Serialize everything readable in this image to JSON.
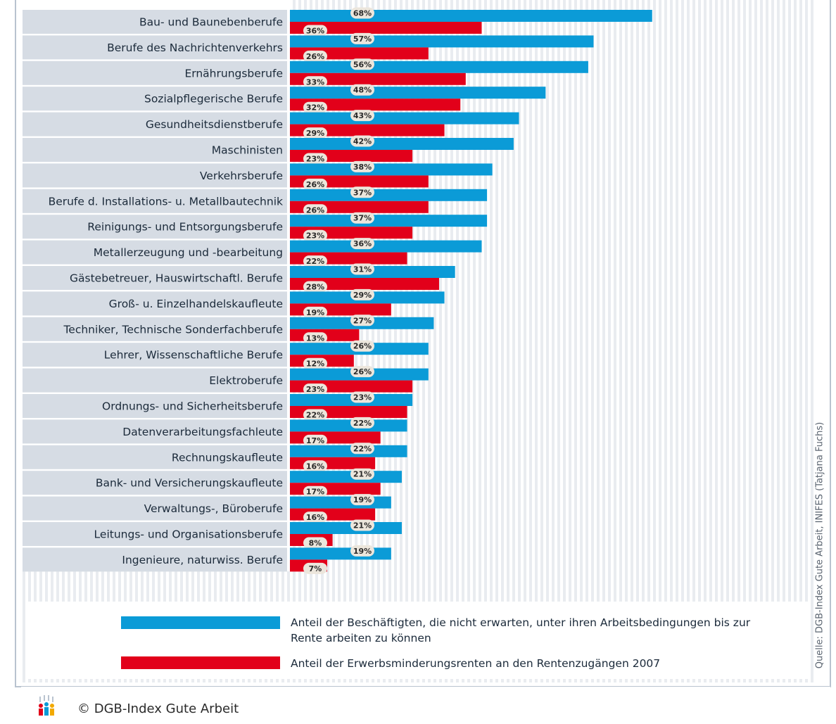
{
  "chart_data": {
    "type": "bar",
    "orientation": "horizontal",
    "categories": [
      "Bau- und Baunebenberufe",
      "Berufe des Nachrichtenverkehrs",
      "Ernährungsberufe",
      "Sozialpflegerische Berufe",
      "Gesundheitsdienstberufe",
      "Maschinisten",
      "Verkehrsberufe",
      "Berufe d. Installations- u. Metallbautechnik",
      "Reinigungs- und Entsorgungsberufe",
      "Metallerzeugung und -bearbeitung",
      "Gästebetreuer, Hauswirtschaftl. Berufe",
      "Groß- u. Einzelhandelskaufleute",
      "Techniker, Technische Sonderfachberufe",
      "Lehrer, Wissenschaftliche Berufe",
      "Elektroberufe",
      "Ordnungs- und Sicherheitsberufe",
      "Datenverarbeitungsfachleute",
      "Rechnungskaufleute",
      "Bank- und Versicherungskaufleute",
      "Verwaltungs-, Büroberufe",
      "Leitungs- und Organisationsberufe",
      "Ingenieure, naturwiss. Berufe"
    ],
    "series": [
      {
        "name": "Anteil der Beschäftigten, die nicht erwarten, unter ihren Arbeitsbedingungen bis zur Rente arbeiten zu können",
        "color": "#0b9bd7",
        "values": [
          68,
          57,
          56,
          48,
          43,
          42,
          38,
          37,
          37,
          36,
          31,
          29,
          27,
          26,
          26,
          23,
          22,
          22,
          21,
          19,
          21,
          19
        ],
        "value_labels": [
          "68%",
          "57%",
          "56%",
          "48%",
          "43%",
          "42%",
          "38%",
          "37%",
          "37%",
          "36%",
          "31%",
          "29%",
          "27%",
          "26%",
          "26%",
          "23%",
          "22%",
          "22%",
          "21%",
          "19%",
          "21%",
          "19%"
        ]
      },
      {
        "name": "Anteil der Erwerbsminderungsrenten an den Rentenzugängen 2007",
        "color": "#e2001a",
        "values": [
          36,
          26,
          33,
          32,
          29,
          23,
          26,
          26,
          23,
          22,
          28,
          19,
          13,
          12,
          23,
          22,
          17,
          16,
          17,
          16,
          8,
          7
        ],
        "value_labels": [
          "36%",
          "26%",
          "33%",
          "32%",
          "29%",
          "23%",
          "26%",
          "26%",
          "23%",
          "22%",
          "28%",
          "19%",
          "13%",
          "12%",
          "23%",
          "22%",
          "17%",
          "16%",
          "17%",
          "16%",
          "8%",
          "7%"
        ]
      }
    ],
    "xlim": [
      0,
      100
    ],
    "source": "Quelle: DGB-Index Gute Arbeit, INIFES (Tatjana Fuchs)",
    "footer": "© DGB-Index Gute Arbeit"
  }
}
